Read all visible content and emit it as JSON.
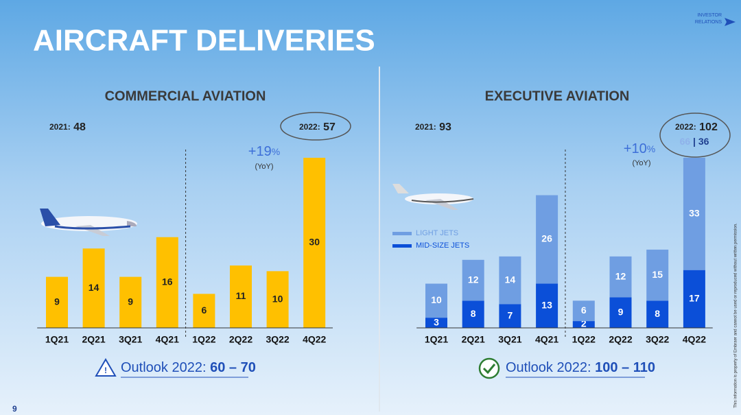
{
  "header": {
    "title": "AIRCRAFT DELIVERIES",
    "logo": "INVESTOR RELATIONS"
  },
  "page_number": "9",
  "disclaimer": "This information is property of Embraer and cannot be used or reproduced without written permission.",
  "chart_data": [
    {
      "type": "bar",
      "title": "COMMERCIAL AVIATION",
      "categories": [
        "1Q21",
        "2Q21",
        "3Q21",
        "4Q21",
        "1Q22",
        "2Q22",
        "3Q22",
        "4Q22"
      ],
      "values": [
        9,
        14,
        9,
        16,
        6,
        11,
        10,
        30
      ],
      "color": "#ffc000",
      "summary_2021": {
        "label": "2021:",
        "value": 48
      },
      "summary_2022": {
        "label": "2022:",
        "value": 57
      },
      "growth": {
        "value": "+19",
        "unit": "%",
        "note": "(YoY)"
      },
      "outlook": {
        "label": "Outlook 2022:",
        "range": "60 – 70"
      }
    },
    {
      "type": "stacked_bar",
      "title": "EXECUTIVE AVIATION",
      "categories": [
        "1Q21",
        "2Q21",
        "3Q21",
        "4Q21",
        "1Q22",
        "2Q22",
        "3Q22",
        "4Q22"
      ],
      "series": [
        {
          "name": "MID-SIZE JETS",
          "color": "#0b4fd8",
          "values": [
            3,
            8,
            7,
            13,
            2,
            9,
            8,
            17
          ]
        },
        {
          "name": "LIGHT JETS",
          "color": "#6f9ee2",
          "values": [
            10,
            12,
            14,
            26,
            6,
            12,
            15,
            33
          ]
        }
      ],
      "summary_2021": {
        "label": "2021:",
        "value": 93
      },
      "summary_2022": {
        "label": "2022:",
        "value": 102,
        "light": 66,
        "separator": "|",
        "mid": 36
      },
      "growth": {
        "value": "+10",
        "unit": "%",
        "note": "(YoY)"
      },
      "outlook": {
        "label": "Outlook 2022:",
        "range": "100 – 110"
      }
    }
  ]
}
